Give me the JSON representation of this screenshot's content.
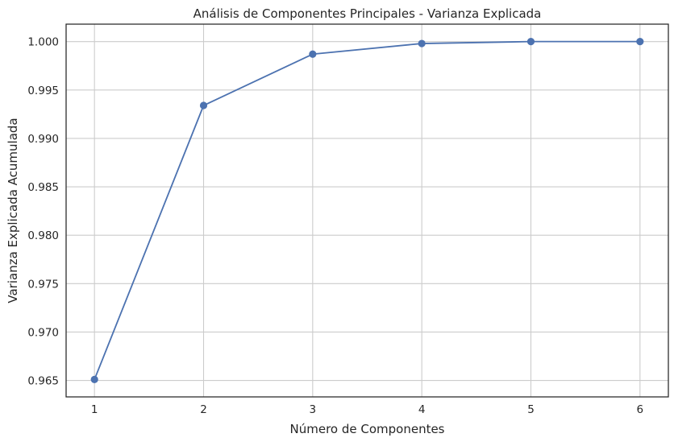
{
  "chart_data": {
    "type": "line",
    "title": "Análisis de Componentes Principales - Varianza Explicada",
    "xlabel": "Número de Componentes",
    "ylabel": "Varianza Explicada Acumulada",
    "x": [
      1,
      2,
      3,
      4,
      5,
      6
    ],
    "x_ticks": [
      "1",
      "2",
      "3",
      "4",
      "5",
      "6"
    ],
    "y_ticks": [
      "0.965",
      "0.970",
      "0.975",
      "0.980",
      "0.985",
      "0.990",
      "0.995",
      "1.000"
    ],
    "series": [
      {
        "values": [
          0.9651,
          0.9934,
          0.9987,
          0.9998,
          1.0,
          1.0
        ],
        "color": "#4c72b0",
        "marker": "circle"
      }
    ],
    "xlim": [
      0.74,
      6.26
    ],
    "ylim": [
      0.9633,
      1.0018
    ],
    "grid": true,
    "legend": "none"
  }
}
